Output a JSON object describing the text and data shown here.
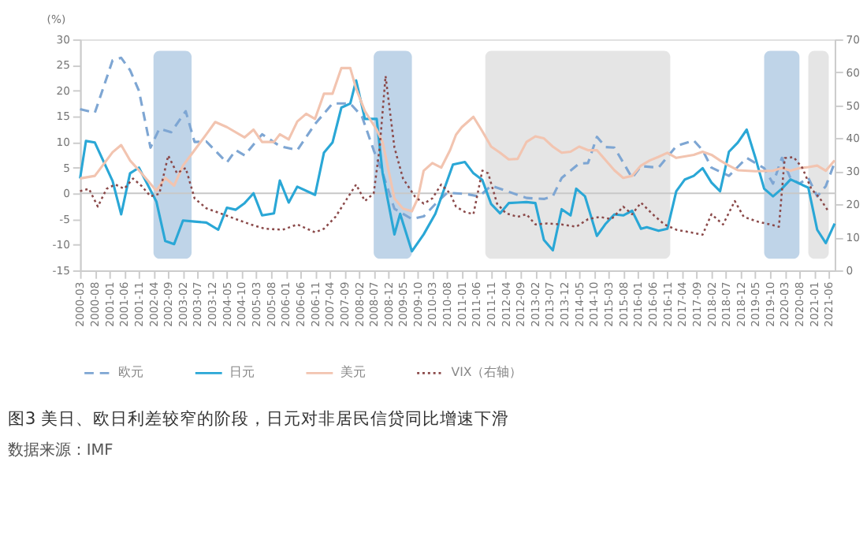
{
  "chart_data": {
    "type": "line",
    "title": "图3  美日、欧日利差较窄的阶段，日元对非居民信贷同比增速下滑",
    "ylabel": "(%)",
    "annotations": [
      "数据来源：IMF"
    ],
    "xlim": [
      "2000-03",
      "2021-08"
    ],
    "xticks": [
      "2000-03",
      "2000-08",
      "2001-01",
      "2001-06",
      "2001-11",
      "2002-04",
      "2002-09",
      "2003-02",
      "2003-07",
      "2003-12",
      "2004-05",
      "2004-10",
      "2005-03",
      "2005-08",
      "2006-01",
      "2006-06",
      "2006-11",
      "2007-04",
      "2007-09",
      "2008-02",
      "2008-07",
      "2008-12",
      "2009-05",
      "2009-10",
      "2010-03",
      "2010-08",
      "2011-01",
      "2011-06",
      "2011-11",
      "2012-04",
      "2012-09",
      "2013-02",
      "2013-07",
      "2013-12",
      "2014-05",
      "2014-10",
      "2015-03",
      "2015-08",
      "2016-01",
      "2016-06",
      "2016-11",
      "2017-04",
      "2017-09",
      "2018-02",
      "2018-07",
      "2018-12",
      "2019-05",
      "2019-10",
      "2020-03",
      "2020-08",
      "2021-01",
      "2021-06"
    ],
    "ylim": [
      -15,
      30
    ],
    "yticks": [
      -15,
      -10,
      -5,
      0,
      5,
      10,
      15,
      20,
      25,
      30
    ],
    "y2lim": [
      0,
      70
    ],
    "y2ticks": [
      0,
      10,
      20,
      30,
      40,
      50,
      60,
      70
    ],
    "legend": "bottom",
    "grid": false,
    "ref_lines": [
      {
        "axis": "y",
        "value": 0,
        "color": "#c8c8c8"
      }
    ],
    "bands": [
      {
        "axis": "x",
        "from": "2002-04",
        "to": "2003-05",
        "color": "#a9c6e0"
      },
      {
        "axis": "x",
        "from": "2008-07",
        "to": "2009-08",
        "color": "#a9c6e0"
      },
      {
        "axis": "x",
        "from": "2011-09",
        "to": "2016-12",
        "color": "#dcdcdc"
      },
      {
        "axis": "x",
        "from": "2019-08",
        "to": "2020-08",
        "color": "#a9c6e0"
      },
      {
        "axis": "x",
        "from": "2020-11",
        "to": "2021-06",
        "color": "#dcdcdc"
      }
    ],
    "series": [
      {
        "name": "欧元",
        "color": "#7ea6d3",
        "line_style": "dashed",
        "x": [
          "2000-03",
          "2000-08",
          "2001-02",
          "2001-05",
          "2001-08",
          "2001-11",
          "2002-03",
          "2002-06",
          "2002-10",
          "2003-03",
          "2003-06",
          "2003-10",
          "2004-05",
          "2004-08",
          "2004-11",
          "2005-05",
          "2005-11",
          "2006-05",
          "2006-11",
          "2007-05",
          "2007-11",
          "2008-03",
          "2008-07",
          "2008-10",
          "2009-02",
          "2009-08",
          "2009-12",
          "2010-05",
          "2010-08",
          "2011-02",
          "2011-07",
          "2011-11",
          "2012-05",
          "2012-11",
          "2013-05",
          "2013-08",
          "2013-11",
          "2014-05",
          "2014-08",
          "2014-11",
          "2015-02",
          "2015-05",
          "2015-08",
          "2015-11",
          "2016-02",
          "2016-08",
          "2017-02",
          "2017-08",
          "2017-11",
          "2018-02",
          "2018-08",
          "2019-02",
          "2019-08",
          "2019-11",
          "2020-02",
          "2020-05",
          "2020-08",
          "2020-11",
          "2021-02",
          "2021-05",
          "2021-08"
        ],
        "values": [
          16.4,
          15.7,
          25.9,
          26.4,
          24,
          20,
          8.9,
          12.6,
          11.9,
          16,
          10,
          10.1,
          6,
          8.4,
          7.4,
          11.5,
          9.2,
          8.4,
          13.5,
          17.5,
          17.5,
          15,
          8.4,
          4,
          -3,
          -5,
          -4.5,
          -1.5,
          0.1,
          -0.1,
          -0.6,
          1.5,
          0.3,
          -0.9,
          -1.1,
          -0.6,
          3,
          5.8,
          5.9,
          11,
          9,
          8.9,
          6,
          3,
          5.3,
          5,
          9.2,
          10.3,
          8.4,
          5,
          3.4,
          6.9,
          4.9,
          1.9,
          6.9,
          2.9,
          1.9,
          3,
          -0.6,
          1.4,
          6
        ]
      },
      {
        "name": "日元",
        "color": "#2aa7d6",
        "line_style": "solid",
        "x": [
          "2000-03",
          "2000-05",
          "2000-08",
          "2001-02",
          "2001-05",
          "2001-08",
          "2001-11",
          "2002-05",
          "2002-08",
          "2002-11",
          "2003-02",
          "2003-06",
          "2003-10",
          "2004-02",
          "2004-05",
          "2004-08",
          "2004-11",
          "2005-02",
          "2005-05",
          "2005-09",
          "2005-11",
          "2006-02",
          "2006-05",
          "2006-11",
          "2007-02",
          "2007-05",
          "2007-08",
          "2007-11",
          "2008-01",
          "2008-04",
          "2008-08",
          "2008-10",
          "2009-02",
          "2009-04",
          "2009-08",
          "2009-12",
          "2010-04",
          "2010-10",
          "2011-02",
          "2011-05",
          "2011-08",
          "2011-11",
          "2012-02",
          "2012-05",
          "2012-08",
          "2012-11",
          "2013-02",
          "2013-05",
          "2013-08",
          "2013-11",
          "2014-02",
          "2014-04",
          "2014-07",
          "2014-11",
          "2015-02",
          "2015-05",
          "2015-08",
          "2015-11",
          "2016-02",
          "2016-04",
          "2016-08",
          "2016-11",
          "2017-02",
          "2017-05",
          "2017-08",
          "2017-11",
          "2018-02",
          "2018-05",
          "2018-08",
          "2018-11",
          "2019-02",
          "2019-05",
          "2019-08",
          "2019-11",
          "2020-02",
          "2020-05",
          "2020-08",
          "2020-11",
          "2021-02",
          "2021-05",
          "2021-08"
        ],
        "values": [
          2.9,
          10.2,
          9.9,
          2.4,
          -4.1,
          3.9,
          5,
          -1.6,
          -9.3,
          -9.9,
          -5.3,
          -5.5,
          -5.7,
          -7.1,
          -2.8,
          -3.2,
          -1.9,
          0,
          -4.3,
          -3.9,
          2.5,
          -1.8,
          1.3,
          -0.3,
          7.9,
          9.9,
          16.7,
          17.5,
          22,
          14.5,
          14.5,
          4,
          -8,
          -4,
          -11.3,
          -8,
          -4,
          5.6,
          6.1,
          3.9,
          2.6,
          -2.1,
          -3.9,
          -1.9,
          -1.8,
          -1.7,
          -1.9,
          -9.1,
          -11.1,
          -3.1,
          -4.3,
          0.9,
          -0.6,
          -8.3,
          -5.9,
          -4.1,
          -4.3,
          -3.4,
          -6.9,
          -6.6,
          -7.3,
          -6.9,
          0.4,
          2.7,
          3.4,
          4.9,
          2.1,
          0.4,
          8.1,
          9.9,
          12.4,
          7,
          0.9,
          -0.6,
          0.9,
          2.7,
          1.9,
          1.1,
          -7.1,
          -9.7,
          -5.9
        ]
      },
      {
        "name": "美元",
        "color": "#f2c4b0",
        "line_style": "solid",
        "x": [
          "2000-03",
          "2000-08",
          "2001-02",
          "2001-05",
          "2001-08",
          "2001-11",
          "2002-05",
          "2002-08",
          "2002-11",
          "2003-02",
          "2003-06",
          "2003-10",
          "2004-01",
          "2004-05",
          "2004-11",
          "2005-02",
          "2005-05",
          "2005-09",
          "2005-11",
          "2006-02",
          "2006-05",
          "2006-08",
          "2006-11",
          "2007-02",
          "2007-05",
          "2007-08",
          "2007-11",
          "2008-01",
          "2008-04",
          "2008-08",
          "2008-10",
          "2009-02",
          "2009-05",
          "2009-08",
          "2009-10",
          "2009-12",
          "2010-03",
          "2010-06",
          "2010-09",
          "2010-11",
          "2011-01",
          "2011-05",
          "2011-08",
          "2011-11",
          "2012-02",
          "2012-05",
          "2012-08",
          "2012-11",
          "2013-02",
          "2013-05",
          "2013-08",
          "2013-11",
          "2014-02",
          "2014-05",
          "2014-08",
          "2014-11",
          "2015-02",
          "2015-05",
          "2015-08",
          "2015-11",
          "2016-02",
          "2016-05",
          "2016-08",
          "2016-11",
          "2017-02",
          "2017-08",
          "2017-11",
          "2018-02",
          "2018-05",
          "2018-08",
          "2018-11",
          "2019-05",
          "2019-11",
          "2020-02",
          "2020-05",
          "2020-08",
          "2020-11",
          "2021-02",
          "2021-05",
          "2021-08"
        ],
        "values": [
          2.9,
          3.4,
          8,
          9.4,
          6.4,
          4.5,
          0.5,
          3,
          1.5,
          5.4,
          8.4,
          11.5,
          13.9,
          12.9,
          10.9,
          12.4,
          10,
          10,
          11.5,
          10.5,
          14,
          15.5,
          14.5,
          19.4,
          19.4,
          24.4,
          24.4,
          20.4,
          16,
          12.4,
          10,
          -1,
          -3,
          -3.5,
          -1,
          4.4,
          5.9,
          5,
          8.4,
          11.4,
          12.9,
          14.9,
          12.1,
          9.1,
          7.9,
          6.6,
          6.7,
          10,
          11.1,
          10.7,
          9.1,
          7.9,
          8.1,
          9.1,
          8.4,
          8.4,
          6.4,
          4.5,
          3,
          3.4,
          5.4,
          6.4,
          7.1,
          7.9,
          6.9,
          7.5,
          8.1,
          7.5,
          6.4,
          5.4,
          4.5,
          4.3,
          4.4,
          4.9,
          4.4,
          4.9,
          5.1,
          5.4,
          4.4,
          6.4
        ]
      },
      {
        "name": "VIX（右轴）",
        "color": "#8b4a4a",
        "line_style": "dotted",
        "axis": "y2",
        "x": [
          "2000-03",
          "2000-06",
          "2000-09",
          "2000-12",
          "2001-03",
          "2001-06",
          "2001-09",
          "2001-12",
          "2002-03",
          "2002-06",
          "2002-09",
          "2002-12",
          "2003-03",
          "2003-06",
          "2003-10",
          "2004-06",
          "2005-01",
          "2005-06",
          "2005-12",
          "2006-05",
          "2006-11",
          "2007-02",
          "2007-06",
          "2007-10",
          "2008-01",
          "2008-04",
          "2008-07",
          "2008-09",
          "2008-11",
          "2009-02",
          "2009-05",
          "2009-09",
          "2009-12",
          "2010-03",
          "2010-06",
          "2010-09",
          "2010-11",
          "2011-02",
          "2011-05",
          "2011-08",
          "2011-10",
          "2012-01",
          "2012-04",
          "2012-08",
          "2012-11",
          "2013-02",
          "2013-06",
          "2013-11",
          "2014-04",
          "2014-08",
          "2014-12",
          "2015-04",
          "2015-08",
          "2015-11",
          "2016-02",
          "2016-06",
          "2016-10",
          "2017-02",
          "2017-07",
          "2017-11",
          "2018-02",
          "2018-06",
          "2018-10",
          "2019-01",
          "2019-06",
          "2019-10",
          "2020-01",
          "2020-03",
          "2020-06",
          "2020-09",
          "2020-12",
          "2021-03",
          "2021-06"
        ],
        "values": [
          24,
          24.7,
          19.3,
          24.7,
          26,
          24.7,
          27.8,
          25.5,
          22.4,
          23.2,
          34.8,
          29.4,
          31,
          21.8,
          18.8,
          16.2,
          13.9,
          12.6,
          12.3,
          13.9,
          11.5,
          12.6,
          16.2,
          21.8,
          26,
          21,
          23.3,
          37.2,
          58.9,
          37.2,
          27.8,
          22.4,
          20.2,
          21.8,
          26,
          23.3,
          19.3,
          17.7,
          17,
          30.2,
          29.4,
          20.2,
          17.3,
          16.2,
          17,
          13.9,
          14.2,
          13.9,
          13.2,
          15.5,
          16.2,
          15.5,
          19.3,
          17,
          20.5,
          17,
          13.9,
          12.3,
          11.5,
          10.8,
          17,
          13.9,
          21,
          16.2,
          14.7,
          13.9,
          13.2,
          34,
          34.3,
          31,
          24.7,
          21.8,
          17.7
        ]
      }
    ]
  }
}
